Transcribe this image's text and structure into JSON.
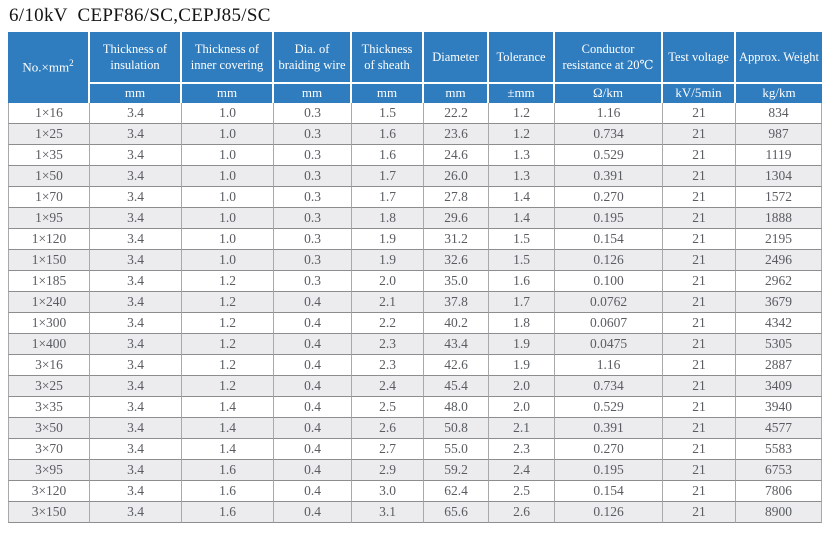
{
  "title": "6/10kV  CEPF86/SC,CEPJ85/SC",
  "colors": {
    "header_background": "#2f7cbe",
    "header_text": "#ffffff",
    "row_stripe": "#ececee",
    "body_text": "#595c60",
    "grid_line": "#8d8d8f"
  },
  "table": {
    "corner": {
      "label_base": "No.×mm",
      "label_sup": "2"
    },
    "columns": [
      {
        "label": "Thickness of insulation",
        "unit": "mm"
      },
      {
        "label": "Thickness of inner covering",
        "unit": "mm"
      },
      {
        "label": "Dia. of braiding wire",
        "unit": "mm"
      },
      {
        "label": "Thickness of sheath",
        "unit": "mm"
      },
      {
        "label": "Diameter",
        "unit": "mm"
      },
      {
        "label": "Tolerance",
        "unit": "±mm"
      },
      {
        "label": "Conductor resistance at 20℃",
        "unit": "Ω/km"
      },
      {
        "label": "Test voltage",
        "unit": "kV/5min"
      },
      {
        "label": "Approx. Weight",
        "unit": "kg/km"
      }
    ],
    "rows": [
      [
        "1×16",
        "3.4",
        "1.0",
        "0.3",
        "1.5",
        "22.2",
        "1.2",
        "1.16",
        "21",
        "834"
      ],
      [
        "1×25",
        "3.4",
        "1.0",
        "0.3",
        "1.6",
        "23.6",
        "1.2",
        "0.734",
        "21",
        "987"
      ],
      [
        "1×35",
        "3.4",
        "1.0",
        "0.3",
        "1.6",
        "24.6",
        "1.3",
        "0.529",
        "21",
        "1119"
      ],
      [
        "1×50",
        "3.4",
        "1.0",
        "0.3",
        "1.7",
        "26.0",
        "1.3",
        "0.391",
        "21",
        "1304"
      ],
      [
        "1×70",
        "3.4",
        "1.0",
        "0.3",
        "1.7",
        "27.8",
        "1.4",
        "0.270",
        "21",
        "1572"
      ],
      [
        "1×95",
        "3.4",
        "1.0",
        "0.3",
        "1.8",
        "29.6",
        "1.4",
        "0.195",
        "21",
        "1888"
      ],
      [
        "1×120",
        "3.4",
        "1.0",
        "0.3",
        "1.9",
        "31.2",
        "1.5",
        "0.154",
        "21",
        "2195"
      ],
      [
        "1×150",
        "3.4",
        "1.0",
        "0.3",
        "1.9",
        "32.6",
        "1.5",
        "0.126",
        "21",
        "2496"
      ],
      [
        "1×185",
        "3.4",
        "1.2",
        "0.3",
        "2.0",
        "35.0",
        "1.6",
        "0.100",
        "21",
        "2962"
      ],
      [
        "1×240",
        "3.4",
        "1.2",
        "0.4",
        "2.1",
        "37.8",
        "1.7",
        "0.0762",
        "21",
        "3679"
      ],
      [
        "1×300",
        "3.4",
        "1.2",
        "0.4",
        "2.2",
        "40.2",
        "1.8",
        "0.0607",
        "21",
        "4342"
      ],
      [
        "1×400",
        "3.4",
        "1.2",
        "0.4",
        "2.3",
        "43.4",
        "1.9",
        "0.0475",
        "21",
        "5305"
      ],
      [
        "3×16",
        "3.4",
        "1.2",
        "0.4",
        "2.3",
        "42.6",
        "1.9",
        "1.16",
        "21",
        "2887"
      ],
      [
        "3×25",
        "3.4",
        "1.2",
        "0.4",
        "2.4",
        "45.4",
        "2.0",
        "0.734",
        "21",
        "3409"
      ],
      [
        "3×35",
        "3.4",
        "1.4",
        "0.4",
        "2.5",
        "48.0",
        "2.0",
        "0.529",
        "21",
        "3940"
      ],
      [
        "3×50",
        "3.4",
        "1.4",
        "0.4",
        "2.6",
        "50.8",
        "2.1",
        "0.391",
        "21",
        "4577"
      ],
      [
        "3×70",
        "3.4",
        "1.4",
        "0.4",
        "2.7",
        "55.0",
        "2.3",
        "0.270",
        "21",
        "5583"
      ],
      [
        "3×95",
        "3.4",
        "1.6",
        "0.4",
        "2.9",
        "59.2",
        "2.4",
        "0.195",
        "21",
        "6753"
      ],
      [
        "3×120",
        "3.4",
        "1.6",
        "0.4",
        "3.0",
        "62.4",
        "2.5",
        "0.154",
        "21",
        "7806"
      ],
      [
        "3×150",
        "3.4",
        "1.6",
        "0.4",
        "3.1",
        "65.6",
        "2.6",
        "0.126",
        "21",
        "8900"
      ]
    ]
  }
}
